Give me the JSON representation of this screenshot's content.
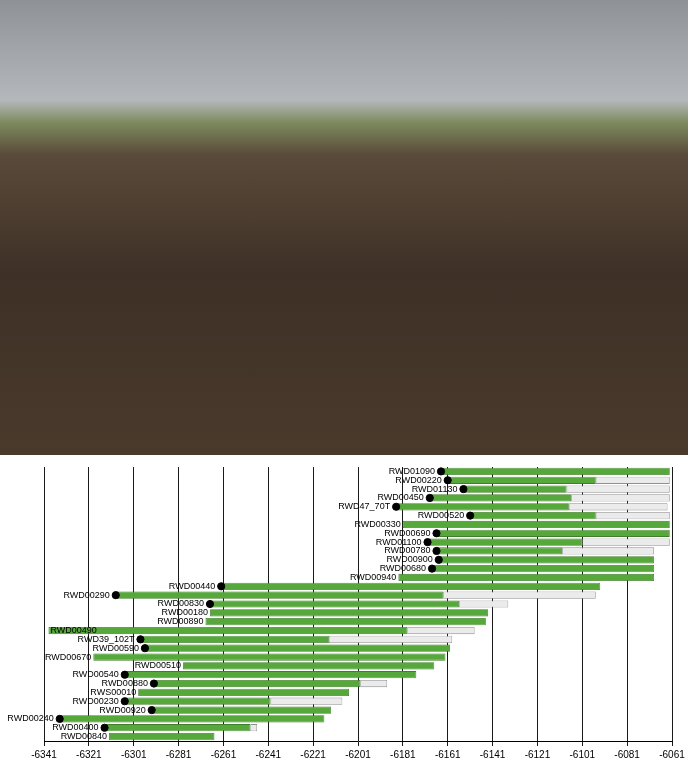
{
  "chart_data": {
    "type": "bar",
    "orientation": "horizontal",
    "categories": [
      "RWD01090",
      "RWD00220",
      "RWD01130",
      "RWD00450",
      "RWD47_70T",
      "RWD00520",
      "RWD00330",
      "RWD00690",
      "RWD01100",
      "RWD00780",
      "RWD00900",
      "RWD00680",
      "RWD00940",
      "RWD00440",
      "RWD00290",
      "RWD00830",
      "RWD00180",
      "RWD00890",
      "RWD00490",
      "RWD39_102T",
      "RWD00590",
      "RWD00670",
      "RWD00510",
      "RWD00540",
      "RWD00880",
      "RWS00010",
      "RWD00230",
      "RWD00920",
      "RWD00240",
      "RWD00400",
      "RWD00840"
    ],
    "series": [
      {
        "type": "bar",
        "color": "#56a83b",
        "values": [
          [
            -6164,
            -6062
          ],
          [
            -6161,
            -6095
          ],
          [
            -6154,
            -6108
          ],
          [
            -6169,
            -6106
          ],
          [
            -6184,
            -6107
          ],
          [
            -6151,
            -6095
          ],
          [
            -6181,
            -6062
          ],
          [
            -6166,
            -6062
          ],
          [
            -6170,
            -6101
          ],
          [
            -6166,
            -6110
          ],
          [
            -6165,
            -6069
          ],
          [
            -6168,
            -6069
          ],
          [
            -6183,
            -6069
          ],
          [
            -6262,
            -6093
          ],
          [
            -6309,
            -6163
          ],
          [
            -6267,
            -6156
          ],
          [
            -6267,
            -6143
          ],
          [
            -6269,
            -6144
          ],
          [
            -6339,
            -6179
          ],
          [
            -6298,
            -6214
          ],
          [
            -6296,
            -6160
          ],
          [
            -6319,
            -6162
          ],
          [
            -6279,
            -6167
          ],
          [
            -6305,
            -6175
          ],
          [
            -6292,
            -6200
          ],
          [
            -6299,
            -6205
          ],
          [
            -6305,
            -6240
          ],
          [
            -6293,
            -6213
          ],
          [
            -6334,
            -6216
          ],
          [
            -6314,
            -6249
          ],
          [
            -6312,
            -6265
          ]
        ]
      },
      {
        "type": "bar",
        "color": "#ebebeb",
        "values": [
          null,
          [
            -6095,
            -6062
          ],
          [
            -6108,
            -6062
          ],
          [
            -6106,
            -6062
          ],
          [
            -6107,
            -6063
          ],
          [
            -6095,
            -6062
          ],
          null,
          null,
          [
            -6101,
            -6062
          ],
          [
            -6110,
            -6069
          ],
          null,
          null,
          null,
          null,
          [
            -6163,
            -6095
          ],
          [
            -6156,
            -6134
          ],
          null,
          null,
          [
            -6179,
            -6149
          ],
          [
            -6214,
            -6159
          ],
          null,
          null,
          null,
          null,
          [
            -6200,
            -6188
          ],
          null,
          [
            -6240,
            -6208
          ],
          null,
          null,
          [
            -6249,
            -6246
          ],
          null
        ]
      },
      {
        "type": "scatter",
        "marker": "circle",
        "color": "#000000",
        "values": [
          -6164,
          -6161,
          -6154,
          -6169,
          -6184,
          -6151,
          null,
          -6166,
          -6170,
          -6166,
          -6165,
          -6168,
          null,
          -6262,
          -6309,
          -6267,
          null,
          null,
          null,
          -6298,
          -6296,
          null,
          null,
          -6305,
          -6292,
          null,
          -6305,
          -6293,
          -6334,
          -6314,
          null
        ]
      }
    ],
    "xlim": [
      -6341,
      -6061
    ],
    "xticks": [
      -6341,
      -6321,
      -6301,
      -6281,
      -6261,
      -6241,
      -6221,
      -6201,
      -6181,
      -6161,
      -6141,
      -6121,
      -6101,
      -6081,
      -6061
    ],
    "grid": true,
    "tick_labels": "x"
  }
}
